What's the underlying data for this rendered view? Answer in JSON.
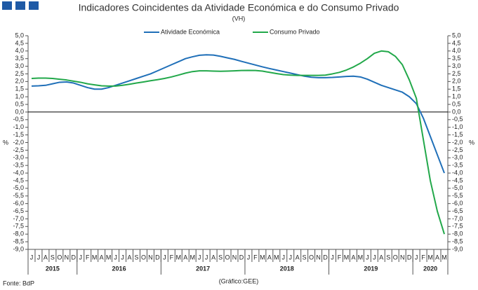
{
  "chart_data": {
    "type": "line",
    "title": "Indicadores Coincidentes da Atividade Económica e do Consumo Privado",
    "subtitle": "(VH)",
    "y_label": "%",
    "source": "Fonte: BdP",
    "credit": "(Gráfico:GEE)",
    "categories": [
      "J",
      "J",
      "A",
      "S",
      "O",
      "N",
      "D",
      "J",
      "F",
      "M",
      "A",
      "M",
      "J",
      "J",
      "A",
      "S",
      "O",
      "N",
      "D",
      "J",
      "F",
      "M",
      "A",
      "M",
      "J",
      "J",
      "A",
      "S",
      "O",
      "N",
      "D",
      "J",
      "F",
      "M",
      "A",
      "M",
      "J",
      "J",
      "A",
      "S",
      "O",
      "N",
      "D",
      "J",
      "F",
      "M",
      "A",
      "M",
      "J",
      "J",
      "A",
      "S",
      "O",
      "N",
      "D",
      "J",
      "F",
      "M",
      "A",
      "M"
    ],
    "x_groups": [
      "2015",
      "2016",
      "2017",
      "2018",
      "2019",
      "2020"
    ],
    "series": [
      {
        "name": "Atividade Económica",
        "color": "#1f6fb8",
        "values": [
          1.7,
          1.72,
          1.75,
          1.85,
          1.95,
          1.97,
          1.9,
          1.75,
          1.6,
          1.5,
          1.5,
          1.6,
          1.75,
          1.9,
          2.05,
          2.2,
          2.35,
          2.5,
          2.7,
          2.9,
          3.1,
          3.3,
          3.5,
          3.62,
          3.72,
          3.75,
          3.73,
          3.65,
          3.55,
          3.45,
          3.32,
          3.2,
          3.08,
          2.96,
          2.85,
          2.75,
          2.65,
          2.55,
          2.45,
          2.35,
          2.28,
          2.25,
          2.25,
          2.27,
          2.3,
          2.33,
          2.35,
          2.3,
          2.15,
          1.95,
          1.75,
          1.6,
          1.45,
          1.3,
          1.0,
          0.55,
          -0.4,
          -1.6,
          -2.8,
          -4.0
        ]
      },
      {
        "name": "Consumo Privado",
        "color": "#22a84a",
        "values": [
          2.2,
          2.22,
          2.22,
          2.2,
          2.15,
          2.1,
          2.02,
          1.95,
          1.85,
          1.78,
          1.72,
          1.7,
          1.7,
          1.75,
          1.82,
          1.9,
          1.97,
          2.05,
          2.12,
          2.2,
          2.3,
          2.42,
          2.55,
          2.65,
          2.7,
          2.7,
          2.68,
          2.67,
          2.68,
          2.7,
          2.72,
          2.73,
          2.72,
          2.68,
          2.6,
          2.52,
          2.45,
          2.42,
          2.4,
          2.4,
          2.4,
          2.4,
          2.42,
          2.5,
          2.6,
          2.75,
          2.95,
          3.2,
          3.5,
          3.85,
          4.0,
          3.95,
          3.65,
          3.1,
          2.1,
          0.9,
          -1.8,
          -4.5,
          -6.5,
          -8.0
        ]
      }
    ],
    "ylim": [
      -9,
      5
    ],
    "yticks": [
      {
        "value": 5,
        "label": "5,0"
      },
      {
        "value": 4.5,
        "label": "4,5"
      },
      {
        "value": 4,
        "label": "4,0"
      },
      {
        "value": 3.5,
        "label": "3,5"
      },
      {
        "value": 3,
        "label": "3,0"
      },
      {
        "value": 2.5,
        "label": "2,5"
      },
      {
        "value": 2,
        "label": "2,0"
      },
      {
        "value": 1.5,
        "label": "1,5"
      },
      {
        "value": 1,
        "label": "1,0"
      },
      {
        "value": 0.5,
        "label": "0,5"
      },
      {
        "value": 0,
        "label": "0,0"
      },
      {
        "value": -0.5,
        "label": "-0,5"
      },
      {
        "value": -1,
        "label": "-1,0"
      },
      {
        "value": -1.5,
        "label": "-1,5"
      },
      {
        "value": -2,
        "label": "-2,0"
      },
      {
        "value": -2.5,
        "label": "-2,5"
      },
      {
        "value": -3,
        "label": "-3,0"
      },
      {
        "value": -3.5,
        "label": "-3,5"
      },
      {
        "value": -4,
        "label": "-4,0"
      },
      {
        "value": -4.5,
        "label": "-4,5"
      },
      {
        "value": -5,
        "label": "-5,0"
      },
      {
        "value": -5.5,
        "label": "-5,5"
      },
      {
        "value": -6,
        "label": "-6,0"
      },
      {
        "value": -6.5,
        "label": "-6,5"
      },
      {
        "value": -7,
        "label": "-7,0"
      },
      {
        "value": -7.5,
        "label": "-7,5"
      },
      {
        "value": -8,
        "label": "-8,0"
      },
      {
        "value": -8.5,
        "label": "-8,5"
      },
      {
        "value": -9,
        "label": "-9,0"
      }
    ],
    "legend": "top"
  }
}
